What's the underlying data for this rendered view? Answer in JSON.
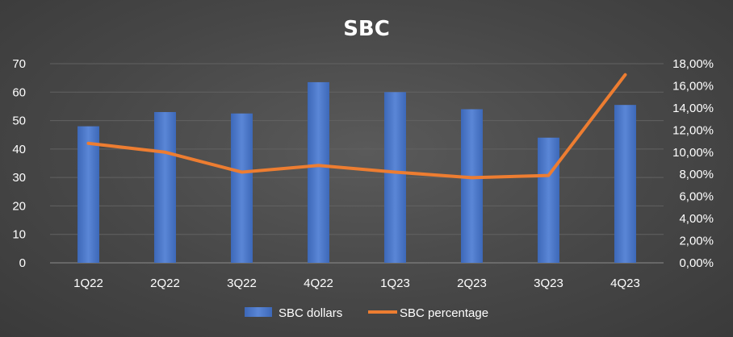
{
  "chart_data": {
    "type": "bar",
    "title": "SBC",
    "categories": [
      "1Q22",
      "2Q22",
      "3Q22",
      "4Q22",
      "1Q23",
      "2Q23",
      "3Q23",
      "4Q23"
    ],
    "series": [
      {
        "name": "SBC dollars",
        "type": "bar",
        "axis": "left",
        "color": "#4472c4",
        "values": [
          48,
          53,
          52.5,
          63.5,
          60,
          54,
          44,
          55.5
        ]
      },
      {
        "name": "SBC percentage",
        "type": "line",
        "axis": "right",
        "color": "#ed7d31",
        "values": [
          0.108,
          0.1,
          0.082,
          0.088,
          0.082,
          0.077,
          0.079,
          0.17
        ]
      }
    ],
    "y_left": {
      "min": 0,
      "max": 70,
      "ticks": [
        0,
        10,
        20,
        30,
        40,
        50,
        60,
        70
      ]
    },
    "y_right": {
      "min": 0,
      "max": 0.18,
      "ticks": [
        0,
        0.02,
        0.04,
        0.06,
        0.08,
        0.1,
        0.12,
        0.14,
        0.16,
        0.18
      ],
      "tick_labels": [
        "0,00%",
        "2,00%",
        "4,00%",
        "6,00%",
        "8,00%",
        "10,00%",
        "12,00%",
        "14,00%",
        "16,00%",
        "18,00%"
      ]
    },
    "grid": true,
    "legend": "bottom-center"
  }
}
